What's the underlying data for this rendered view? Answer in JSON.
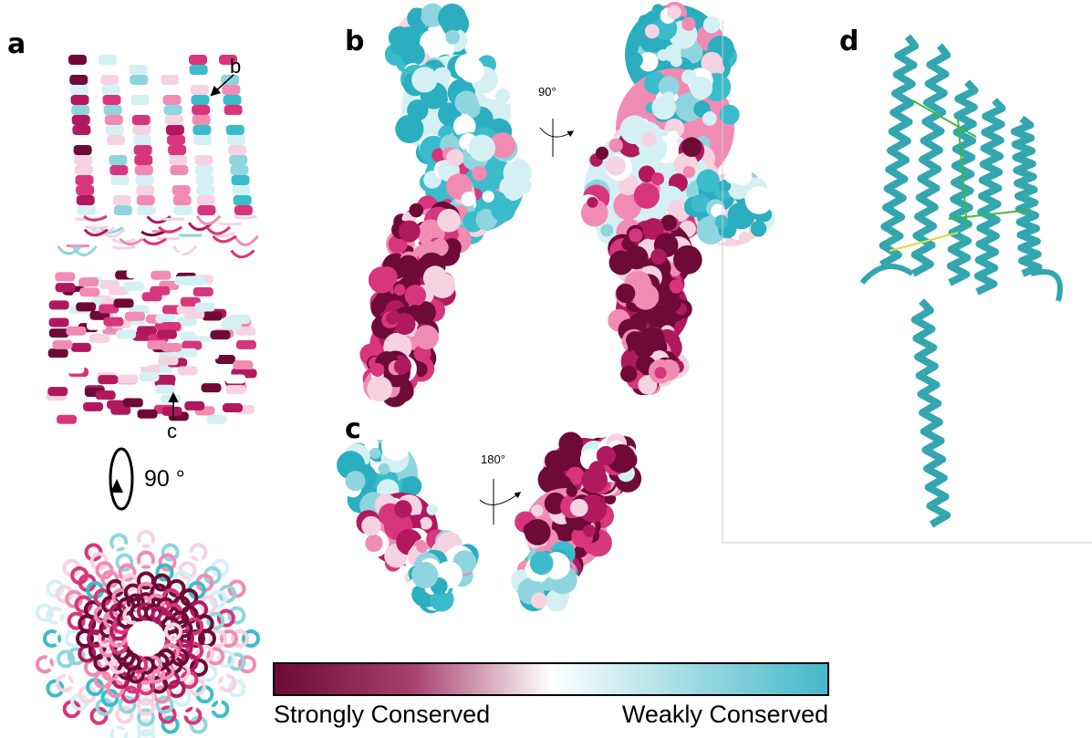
{
  "panels": [
    {
      "label": "a"
    },
    {
      "label": "b"
    },
    {
      "label": "c"
    },
    {
      "label": "d"
    }
  ],
  "annotations": {
    "arrow_b": "b",
    "arrow_c": "c",
    "rotation_a": "90 °",
    "rotation_b": "90°",
    "rotation_c": "180°"
  },
  "colorbar": {
    "low_label": "Strongly Conserved",
    "high_label": "Weakly Conserved"
  }
}
